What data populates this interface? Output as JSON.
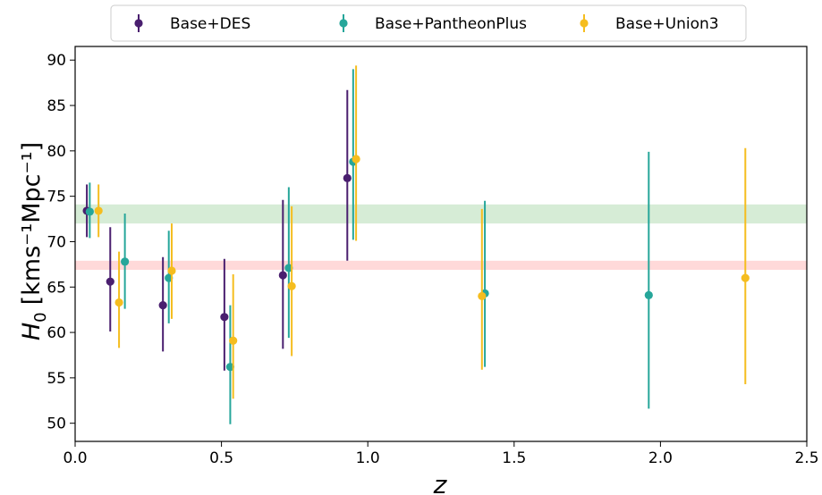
{
  "chart_data": {
    "type": "scatter",
    "title": "",
    "xlabel": "z",
    "ylabel_main": "H",
    "ylabel_sub": "0",
    "ylabel_unit": "[kms⁻¹Mpc⁻¹]",
    "xlim": [
      0.0,
      2.5
    ],
    "ylim": [
      48.0,
      91.5
    ],
    "x_ticks": [
      0.0,
      0.5,
      1.0,
      1.5,
      2.0,
      2.5
    ],
    "x_tick_labels": [
      "0.0",
      "0.5",
      "1.0",
      "1.5",
      "2.0",
      "2.5"
    ],
    "y_ticks": [
      50,
      55,
      60,
      65,
      70,
      75,
      80,
      85,
      90
    ],
    "y_tick_labels": [
      "50",
      "55",
      "60",
      "65",
      "70",
      "75",
      "80",
      "85",
      "90"
    ],
    "grid": false,
    "legend_position": "top-center",
    "bands": [
      {
        "y_low": 72.0,
        "y_high": 74.1,
        "color": "#d6ecd6"
      },
      {
        "y_low": 66.9,
        "y_high": 67.9,
        "color": "#ffd9d9"
      }
    ],
    "series": [
      {
        "name": "Base+DES",
        "color": "#4a1f6f",
        "points": [
          {
            "x": 0.04,
            "y": 73.4,
            "low": 70.5,
            "high": 76.3
          },
          {
            "x": 0.12,
            "y": 65.6,
            "low": 60.1,
            "high": 71.6
          },
          {
            "x": 0.3,
            "y": 63.0,
            "low": 57.9,
            "high": 68.3
          },
          {
            "x": 0.51,
            "y": 61.7,
            "low": 55.8,
            "high": 68.1
          },
          {
            "x": 0.71,
            "y": 66.3,
            "low": 58.2,
            "high": 74.6
          },
          {
            "x": 0.93,
            "y": 77.0,
            "low": 67.9,
            "high": 86.7
          }
        ]
      },
      {
        "name": "Base+PantheonPlus",
        "color": "#26a69a",
        "points": [
          {
            "x": 0.05,
            "y": 73.3,
            "low": 70.4,
            "high": 76.5
          },
          {
            "x": 0.17,
            "y": 67.8,
            "low": 62.6,
            "high": 73.1
          },
          {
            "x": 0.32,
            "y": 66.0,
            "low": 61.0,
            "high": 71.2
          },
          {
            "x": 0.53,
            "y": 56.2,
            "low": 49.9,
            "high": 63.0
          },
          {
            "x": 0.73,
            "y": 67.1,
            "low": 59.4,
            "high": 76.0
          },
          {
            "x": 0.95,
            "y": 78.8,
            "low": 70.2,
            "high": 89.0
          },
          {
            "x": 1.4,
            "y": 64.3,
            "low": 56.2,
            "high": 74.5
          },
          {
            "x": 1.96,
            "y": 64.1,
            "low": 51.6,
            "high": 79.9
          }
        ]
      },
      {
        "name": "Base+Union3",
        "color": "#f5bd1f",
        "points": [
          {
            "x": 0.08,
            "y": 73.4,
            "low": 70.5,
            "high": 76.3
          },
          {
            "x": 0.15,
            "y": 63.3,
            "low": 58.3,
            "high": 68.9
          },
          {
            "x": 0.33,
            "y": 66.8,
            "low": 61.5,
            "high": 72.0
          },
          {
            "x": 0.54,
            "y": 59.1,
            "low": 52.7,
            "high": 66.4
          },
          {
            "x": 0.74,
            "y": 65.1,
            "low": 57.4,
            "high": 73.9
          },
          {
            "x": 0.96,
            "y": 79.1,
            "low": 70.1,
            "high": 89.4
          },
          {
            "x": 1.39,
            "y": 64.0,
            "low": 55.9,
            "high": 73.6
          },
          {
            "x": 2.29,
            "y": 66.0,
            "low": 54.3,
            "high": 80.3
          }
        ]
      }
    ]
  }
}
